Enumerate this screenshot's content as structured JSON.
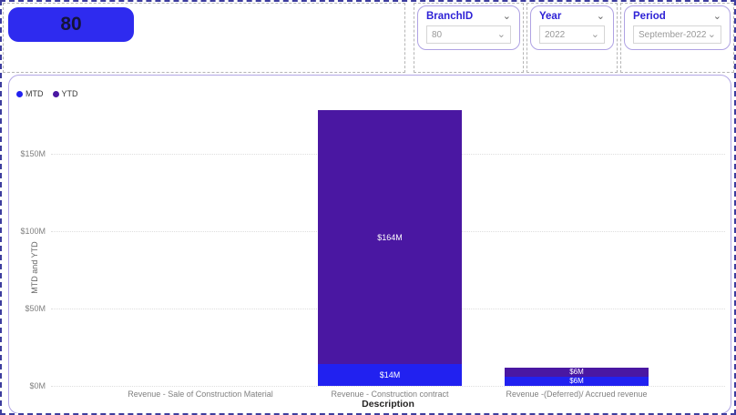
{
  "badge": {
    "value": "80",
    "bg": "#2e2bef"
  },
  "slicers": [
    {
      "title": "BranchID",
      "value": "80"
    },
    {
      "title": "Year",
      "value": "2022"
    },
    {
      "title": "Period",
      "value": "September-2022"
    }
  ],
  "chart": {
    "legend": [
      {
        "label": "MTD",
        "color": "#2121f0"
      },
      {
        "label": "YTD",
        "color": "#4a17a2"
      }
    ],
    "y_axis_title": "MTD and YTD",
    "x_axis_title": "Description"
  },
  "chart_data": {
    "type": "bar",
    "stacked": true,
    "title": "",
    "xlabel": "Description",
    "ylabel": "MTD and YTD",
    "ylim": [
      0,
      178
    ],
    "grid": "horizontal-dotted",
    "legend_position": "top-left",
    "categories": [
      "Revenue - Sale of Construction Material",
      "Revenue - Construction contract",
      "Revenue -(Deferred)/ Accrued revenue"
    ],
    "y_ticks": [
      {
        "value": 0,
        "label": "$0M"
      },
      {
        "value": 50,
        "label": "$50M"
      },
      {
        "value": 100,
        "label": "$100M"
      },
      {
        "value": 150,
        "label": "$150M"
      }
    ],
    "series": [
      {
        "name": "MTD",
        "color": "#2121f0",
        "values": [
          0,
          14,
          6
        ],
        "labels": [
          "",
          "$14M",
          "$6M"
        ]
      },
      {
        "name": "YTD",
        "color": "#4a17a2",
        "values": [
          0,
          164,
          6
        ],
        "labels": [
          "",
          "$164M",
          "$6M"
        ]
      }
    ]
  }
}
